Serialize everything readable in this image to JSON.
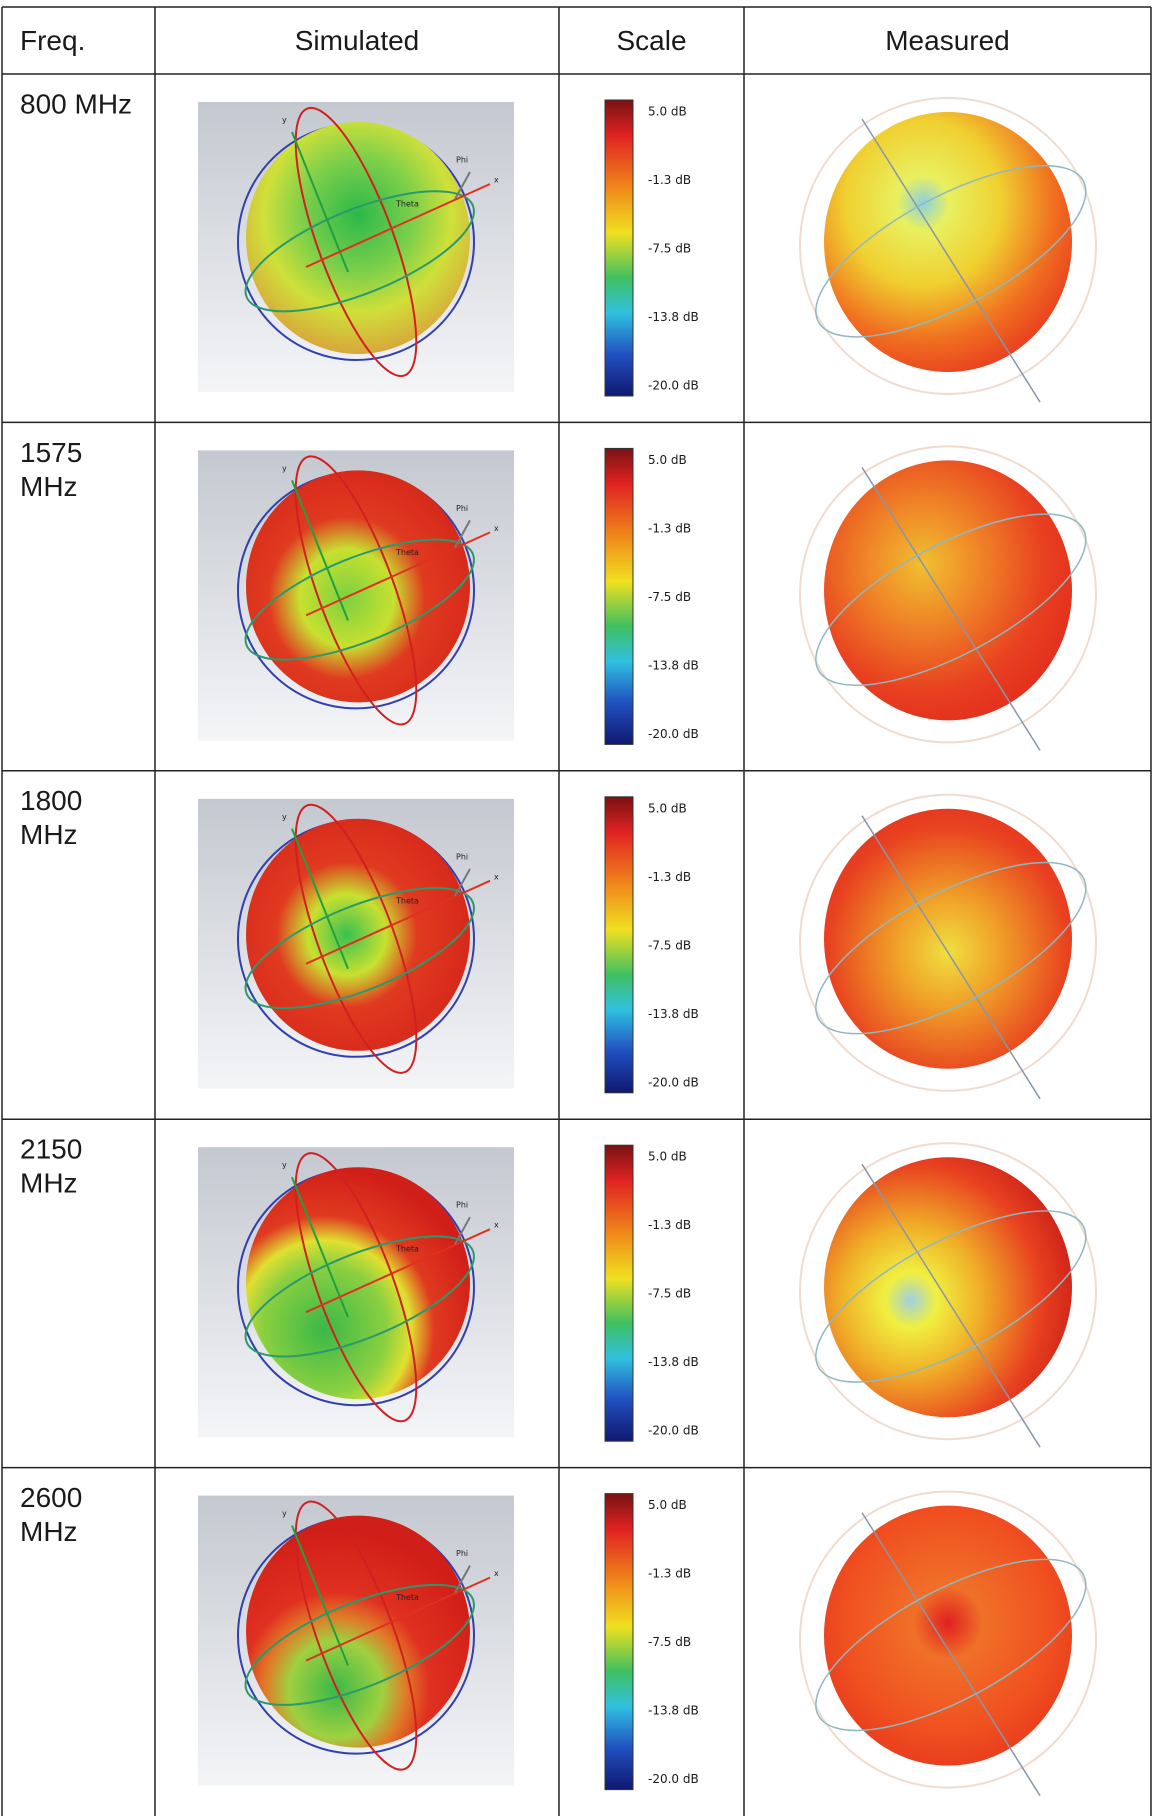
{
  "header": [
    "Freq.",
    "Simulated",
    "Scale",
    "Measured"
  ],
  "rows": [
    {
      "freq": [
        "800 MHz"
      ]
    },
    {
      "freq": [
        "1575",
        "MHz"
      ]
    },
    {
      "freq": [
        "1800",
        "MHz"
      ]
    },
    {
      "freq": [
        "2150",
        "MHz"
      ]
    },
    {
      "freq": [
        "2600",
        "MHz"
      ]
    }
  ],
  "scale_labels": [
    "5.0 dB",
    "-1.3 dB",
    "-7.5 dB",
    "-13.8 dB",
    "-20.0 dB"
  ],
  "simulated_axes": {
    "y": "y",
    "x": "x",
    "phi": "Phi",
    "theta": "Theta"
  }
}
